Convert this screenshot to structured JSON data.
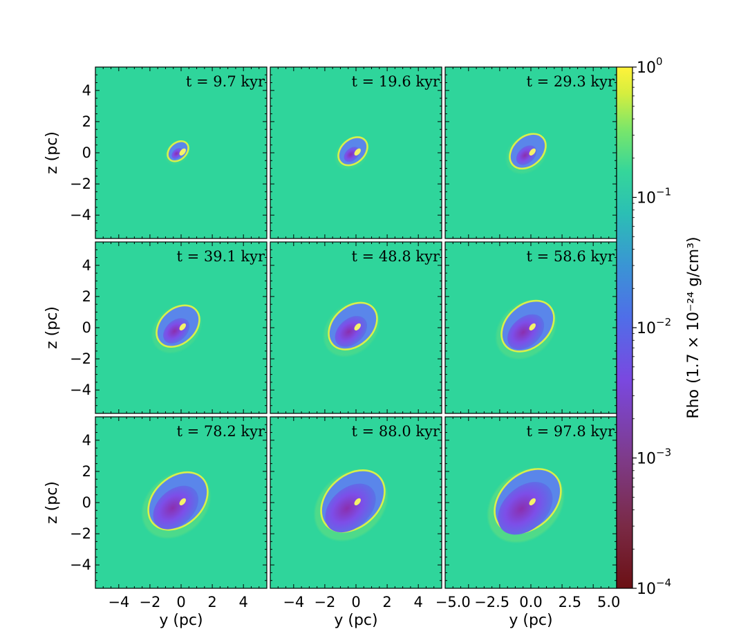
{
  "chart_data": {
    "type": "heatmap",
    "description_axes": {
      "xlabel": "y  (pc)",
      "ylabel": "z  (pc)"
    },
    "xlim": [
      -5.5,
      5.5
    ],
    "ylim": [
      -5.5,
      5.5
    ],
    "xlabel": "y  (pc)",
    "ylabel": "z  (pc)",
    "y_ticks": [
      "4",
      "2",
      "0",
      "−2",
      "−4"
    ],
    "x_ticks_cols_1_2": [
      "−4",
      "−2",
      "0",
      "2",
      "4"
    ],
    "x_ticks_col_3": [
      "−5.0",
      "−2.5",
      "0.0",
      "2.5",
      "5.0"
    ],
    "colorbar": {
      "label": "Rho",
      "unit_label": "(1.7 × 10⁻²⁴ g/cm³)",
      "scale": "log",
      "range": [
        0.0001,
        1
      ],
      "tick_bases": [
        "10",
        "10",
        "10",
        "10",
        "10"
      ],
      "tick_exponents": [
        "0",
        "−1",
        "−2",
        "−3",
        "−4"
      ]
    },
    "panels": [
      {
        "time": "t = 9.7 kyr",
        "shell_radius": 0.75,
        "cavity": 0.0
      },
      {
        "time": "t = 19.6 kyr",
        "shell_radius": 1.05,
        "cavity": 0.0
      },
      {
        "time": "t = 29.3 kyr",
        "shell_radius": 1.3,
        "cavity": 0.05
      },
      {
        "time": "t = 39.1 kyr",
        "shell_radius": 1.55,
        "cavity": 0.15
      },
      {
        "time": "t = 48.8 kyr",
        "shell_radius": 1.75,
        "cavity": 0.25
      },
      {
        "time": "t = 58.6 kyr",
        "shell_radius": 1.9,
        "cavity": 0.32
      },
      {
        "time": "t = 78.2 kyr",
        "shell_radius": 2.15,
        "cavity": 0.45
      },
      {
        "time": "t = 88.0 kyr",
        "shell_radius": 2.3,
        "cavity": 0.52
      },
      {
        "time": "t = 97.8 kyr",
        "shell_radius": 2.4,
        "cavity": 0.58
      }
    ]
  }
}
